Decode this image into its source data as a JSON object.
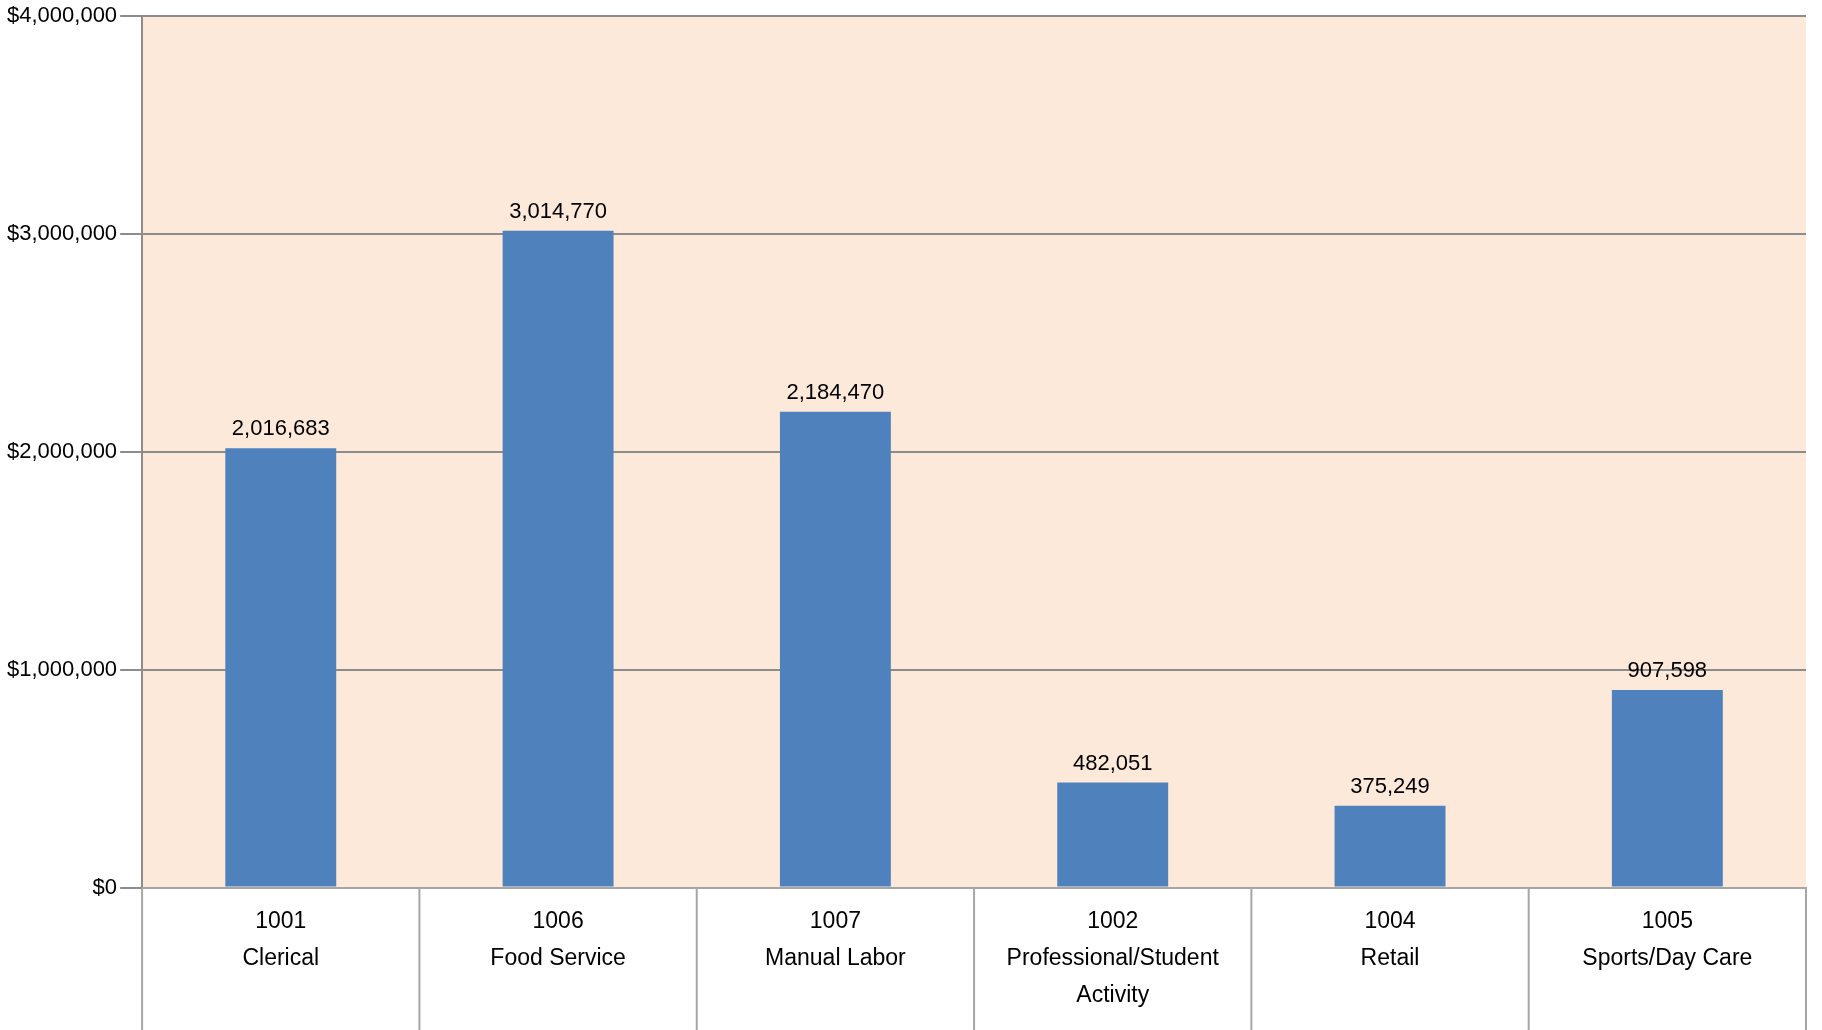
{
  "chart_data": {
    "type": "bar",
    "categories": [
      "1001\nClerical",
      "1006\nFood Service",
      "1007\nManual Labor",
      "1002\nProfessional/Student Activity",
      "1004\nRetail",
      "1005\nSports/Day Care"
    ],
    "values": [
      2016683,
      3014770,
      2184470,
      482051,
      375249,
      907598
    ],
    "value_labels": [
      "2,016,683",
      "3,014,770",
      "2,184,470",
      "482,051",
      "375,249",
      "907,598"
    ],
    "color": "#4f81bd",
    "ylim": [
      0,
      4000000
    ],
    "yticks": [
      {
        "value": 0,
        "label": "$0"
      },
      {
        "value": 1000000,
        "label": "$1,000,000"
      },
      {
        "value": 2000000,
        "label": "$2,000,000"
      },
      {
        "value": 3000000,
        "label": "$3,000,000"
      },
      {
        "value": 4000000,
        "label": "$4,000,000"
      }
    ],
    "grid": "y"
  }
}
